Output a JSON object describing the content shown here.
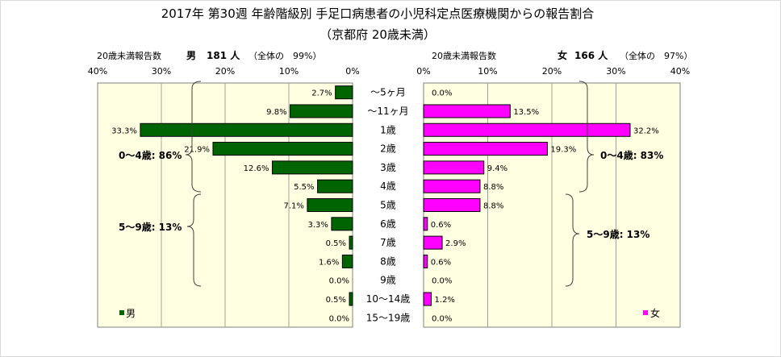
{
  "title": {
    "line1": "2017年 第30週 年齢階級別 手足口病患者の小児科定点医療機関からの報告割合",
    "line2": "（京都府 20歳未満）"
  },
  "colors": {
    "male": "#006400",
    "female": "#FF00FF",
    "plot_bg": "#FFFFE1",
    "grid": "#A0A0A0"
  },
  "male": {
    "header_label": "20歳未満報告数",
    "header_sex": "男",
    "header_count": "181 人",
    "header_share": "（全体の　99%）",
    "legend": "男",
    "group1_label": "0～4歳: 86%",
    "group2_label": "5～9歳: 13%"
  },
  "female": {
    "header_label": "20歳未満報告数",
    "header_sex": "女",
    "header_count": "166 人",
    "header_share": "（全体の　97%）",
    "legend": "女",
    "group1_label": "0～4歳: 83%",
    "group2_label": "5～9歳: 13%"
  },
  "chart_data": {
    "type": "bar",
    "orientation": "horizontal-population-pyramid",
    "categories": [
      "～5ヶ月",
      "～11ヶ月",
      "1歳",
      "2歳",
      "3歳",
      "4歳",
      "5歳",
      "6歳",
      "7歳",
      "8歳",
      "9歳",
      "10～14歳",
      "15～19歳"
    ],
    "xlim": [
      0,
      40
    ],
    "ticks": [
      "40%",
      "30%",
      "20%",
      "10%",
      "0%",
      "0%",
      "10%",
      "20%",
      "30%",
      "40%"
    ],
    "grid": true,
    "series": [
      {
        "name": "男",
        "values": [
          2.7,
          9.8,
          33.3,
          21.9,
          12.6,
          5.5,
          7.1,
          3.3,
          0.5,
          1.6,
          0.0,
          0.5,
          0.0
        ],
        "labels": [
          "2.7%",
          "9.8%",
          "33.3%",
          "21.9%",
          "12.6%",
          "5.5%",
          "7.1%",
          "3.3%",
          "0.5%",
          "1.6%",
          "0.0%",
          "0.5%",
          "0.0%"
        ]
      },
      {
        "name": "女",
        "values": [
          0.0,
          13.5,
          32.2,
          19.3,
          9.4,
          8.8,
          8.8,
          0.6,
          2.9,
          0.6,
          0.0,
          1.2,
          0.0
        ],
        "labels": [
          "0.0%",
          "13.5%",
          "32.2%",
          "19.3%",
          "9.4%",
          "8.8%",
          "8.8%",
          "0.6%",
          "2.9%",
          "0.6%",
          "0.0%",
          "1.2%",
          "0.0%"
        ]
      }
    ]
  }
}
